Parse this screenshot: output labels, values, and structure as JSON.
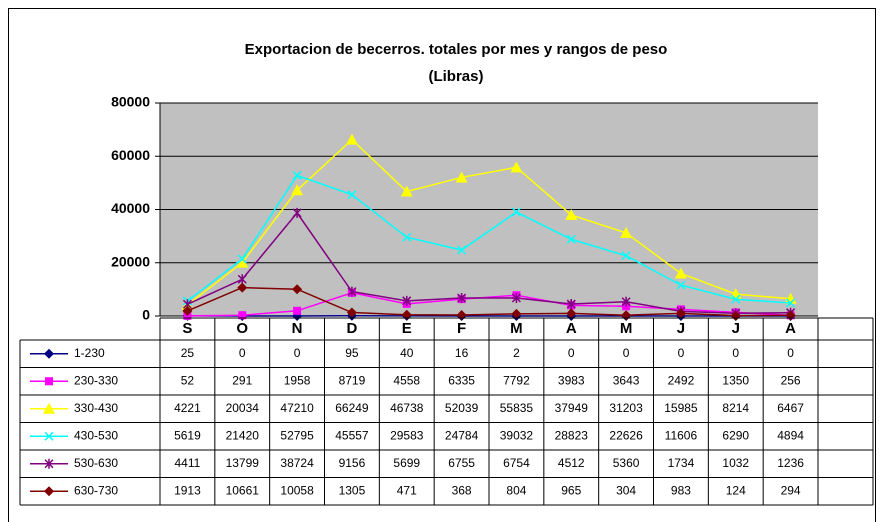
{
  "chart_data": {
    "type": "line",
    "title": "Exportacion de becerros. totales por mes y rangos de peso",
    "subtitle": "(Libras)",
    "categories": [
      "S",
      "O",
      "N",
      "D",
      "E",
      "F",
      "M",
      "A",
      "M",
      "J",
      "J",
      "A"
    ],
    "ylim": [
      0,
      80000
    ],
    "yticks": [
      0,
      20000,
      40000,
      60000,
      80000
    ],
    "grid": true,
    "series": [
      {
        "name": "1-230",
        "color": "#000080",
        "marker": "diamond",
        "values": [
          25,
          0,
          0,
          95,
          40,
          16,
          2,
          0,
          0,
          0,
          0,
          0
        ]
      },
      {
        "name": "230-330",
        "color": "#ff00ff",
        "marker": "square",
        "values": [
          52,
          291,
          1958,
          8719,
          4558,
          6335,
          7792,
          3983,
          3643,
          2492,
          1350,
          256
        ]
      },
      {
        "name": "330-430",
        "color": "#ffff00",
        "marker": "triangle",
        "values": [
          4221,
          20034,
          47210,
          66249,
          46738,
          52039,
          55835,
          37949,
          31203,
          15985,
          8214,
          6467
        ]
      },
      {
        "name": "430-530",
        "color": "#00ffff",
        "marker": "cross",
        "values": [
          5619,
          21420,
          52795,
          45557,
          29583,
          24784,
          39032,
          28823,
          22626,
          11606,
          6290,
          4894
        ]
      },
      {
        "name": "530-630",
        "color": "#800080",
        "marker": "star",
        "values": [
          4411,
          13799,
          38724,
          9156,
          5699,
          6755,
          6754,
          4512,
          5360,
          1734,
          1032,
          1236
        ]
      },
      {
        "name": "630-730",
        "color": "#800000",
        "marker": "diamond",
        "values": [
          1913,
          10661,
          10058,
          1305,
          471,
          368,
          804,
          965,
          304,
          983,
          124,
          294
        ]
      }
    ]
  }
}
